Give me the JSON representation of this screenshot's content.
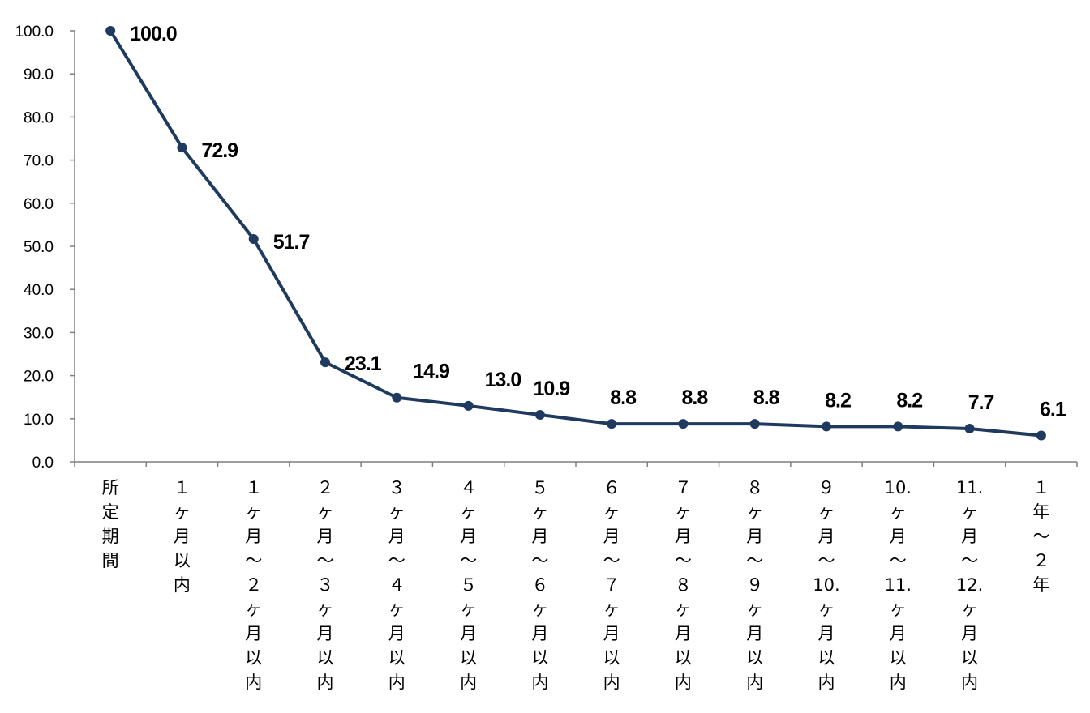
{
  "chart_data": {
    "type": "line",
    "title": "",
    "xlabel": "",
    "ylabel": "",
    "ylim": [
      0,
      100
    ],
    "yticks": [
      "0.0",
      "10.0",
      "20.0",
      "30.0",
      "40.0",
      "50.0",
      "60.0",
      "70.0",
      "80.0",
      "90.0",
      "100.0"
    ],
    "grid": false,
    "legend": "none",
    "line_color": "#1f3a5f",
    "categories": [
      "所定期間",
      "１ヶ月以内",
      "１ヶ月～２ヶ月以内",
      "２ヶ月～３ヶ月以内",
      "３ヶ月～４ヶ月以内",
      "４ヶ月～５ヶ月以内",
      "５ヶ月～６ヶ月以内",
      "６ヶ月～７ヶ月以内",
      "７ヶ月～８ヶ月以内",
      "８ヶ月～９ヶ月以内",
      "９ヶ月～10.ヶ月以内",
      "10.ヶ月～11.ヶ月以内",
      "11.ヶ月～12.ヶ月以内",
      "１年～２年"
    ],
    "category_lines": [
      [
        "所",
        "定",
        "期",
        "間"
      ],
      [
        "１",
        "ヶ",
        "月",
        "以",
        "内"
      ],
      [
        "１",
        "ヶ",
        "月",
        "～",
        "２",
        "ヶ",
        "月",
        "以",
        "内"
      ],
      [
        "２",
        "ヶ",
        "月",
        "～",
        "３",
        "ヶ",
        "月",
        "以",
        "内"
      ],
      [
        "３",
        "ヶ",
        "月",
        "～",
        "４",
        "ヶ",
        "月",
        "以",
        "内"
      ],
      [
        "４",
        "ヶ",
        "月",
        "～",
        "５",
        "ヶ",
        "月",
        "以",
        "内"
      ],
      [
        "５",
        "ヶ",
        "月",
        "～",
        "６",
        "ヶ",
        "月",
        "以",
        "内"
      ],
      [
        "６",
        "ヶ",
        "月",
        "～",
        "７",
        "ヶ",
        "月",
        "以",
        "内"
      ],
      [
        "７",
        "ヶ",
        "月",
        "～",
        "８",
        "ヶ",
        "月",
        "以",
        "内"
      ],
      [
        "８",
        "ヶ",
        "月",
        "～",
        "９",
        "ヶ",
        "月",
        "以",
        "内"
      ],
      [
        "９",
        "ヶ",
        "月",
        "～",
        "10.",
        "ヶ",
        "月",
        "以",
        "内"
      ],
      [
        "10.",
        "ヶ",
        "月",
        "～",
        "11.",
        "ヶ",
        "月",
        "以",
        "内"
      ],
      [
        "11.",
        "ヶ",
        "月",
        "～",
        "12.",
        "ヶ",
        "月",
        "以",
        "内"
      ],
      [
        "１",
        "年",
        "～",
        "２",
        "年"
      ]
    ],
    "series": [
      {
        "values": [
          100.0,
          72.9,
          51.7,
          23.1,
          14.9,
          13.0,
          10.9,
          8.8,
          8.8,
          8.8,
          8.2,
          8.2,
          7.7,
          6.1
        ],
        "labels": [
          "100.0",
          "72.9",
          "51.7",
          "23.1",
          "14.9",
          "13.0",
          "10.9",
          "8.8",
          "8.8",
          "8.8",
          "8.2",
          "8.2",
          "7.7",
          "6.1"
        ]
      }
    ]
  }
}
